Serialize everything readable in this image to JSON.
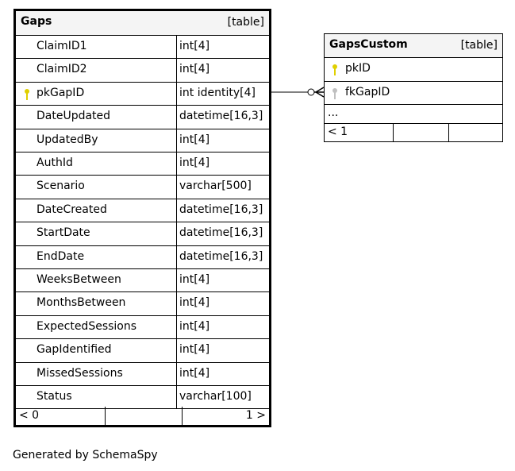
{
  "tables": [
    {
      "name": "Gaps",
      "kind": "[table]",
      "columns": [
        {
          "name": "ClaimID1",
          "type": "int[4]",
          "key": ""
        },
        {
          "name": "ClaimID2",
          "type": "int[4]",
          "key": ""
        },
        {
          "name": "pkGapID",
          "type": "int identity[4]",
          "key": "primary"
        },
        {
          "name": "DateUpdated",
          "type": "datetime[16,3]",
          "key": ""
        },
        {
          "name": "UpdatedBy",
          "type": "int[4]",
          "key": ""
        },
        {
          "name": "AuthId",
          "type": "int[4]",
          "key": ""
        },
        {
          "name": "Scenario",
          "type": "varchar[500]",
          "key": ""
        },
        {
          "name": "DateCreated",
          "type": "datetime[16,3]",
          "key": ""
        },
        {
          "name": "StartDate",
          "type": "datetime[16,3]",
          "key": ""
        },
        {
          "name": "EndDate",
          "type": "datetime[16,3]",
          "key": ""
        },
        {
          "name": "WeeksBetween",
          "type": "int[4]",
          "key": ""
        },
        {
          "name": "MonthsBetween",
          "type": "int[4]",
          "key": ""
        },
        {
          "name": "ExpectedSessions",
          "type": "int[4]",
          "key": ""
        },
        {
          "name": "GapIdentified",
          "type": "int[4]",
          "key": ""
        },
        {
          "name": "MissedSessions",
          "type": "int[4]",
          "key": ""
        },
        {
          "name": "Status",
          "type": "varchar[100]",
          "key": ""
        }
      ],
      "footer_left": "< 0",
      "footer_right": "1 >"
    },
    {
      "name": "GapsCustom",
      "kind": "[table]",
      "columns": [
        {
          "name": "pkID",
          "key": "primary"
        },
        {
          "name": "fkGapID",
          "key": "foreign"
        }
      ],
      "ellipsis": "...",
      "footer_left": "< 1"
    }
  ],
  "colors": {
    "primary_key": "#e0d000",
    "foreign_key": "#c0c0c0",
    "header_bg": "#f4f4f4"
  },
  "footer": "Generated by SchemaSpy"
}
